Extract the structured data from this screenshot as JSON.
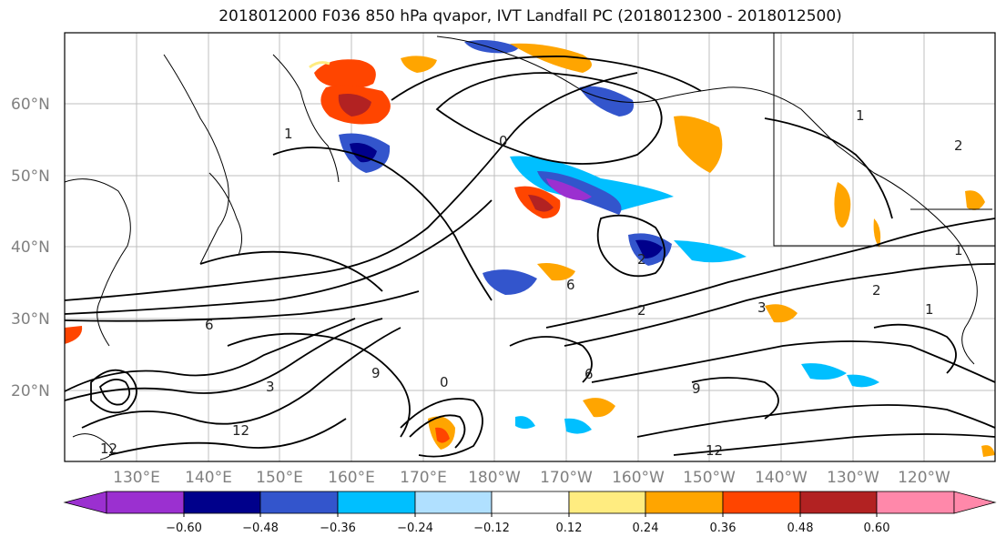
{
  "title": "2018012000 F036 850 hPa qvapor, IVT Landfall PC (2018012300 - 2018012500)",
  "lat_labels": [
    "60°N",
    "50°N",
    "40°N",
    "30°N",
    "20°N"
  ],
  "lon_labels": [
    "130°E",
    "140°E",
    "150°E",
    "160°E",
    "170°E",
    "180°W",
    "170°W",
    "160°W",
    "150°W",
    "140°W",
    "130°W",
    "120°W"
  ],
  "colorbar": {
    "ticks": [
      "−0.60",
      "−0.48",
      "−0.36",
      "−0.24",
      "−0.12",
      "0.12",
      "0.24",
      "0.36",
      "0.48",
      "0.60"
    ],
    "colors": [
      "#9b30d0",
      "#00008b",
      "#3355cc",
      "#00bfff",
      "#b0e0ff",
      "#ffffff",
      "#ffec80",
      "#ffa500",
      "#ff4500",
      "#b22222",
      "#ff88aa"
    ]
  },
  "contour_labels": [
    "0",
    "1",
    "2",
    "3",
    "6",
    "9",
    "12",
    "1",
    "2",
    "0",
    "2",
    "6",
    "9",
    "12",
    "6",
    "3",
    "1",
    "2",
    "1",
    "12"
  ]
}
